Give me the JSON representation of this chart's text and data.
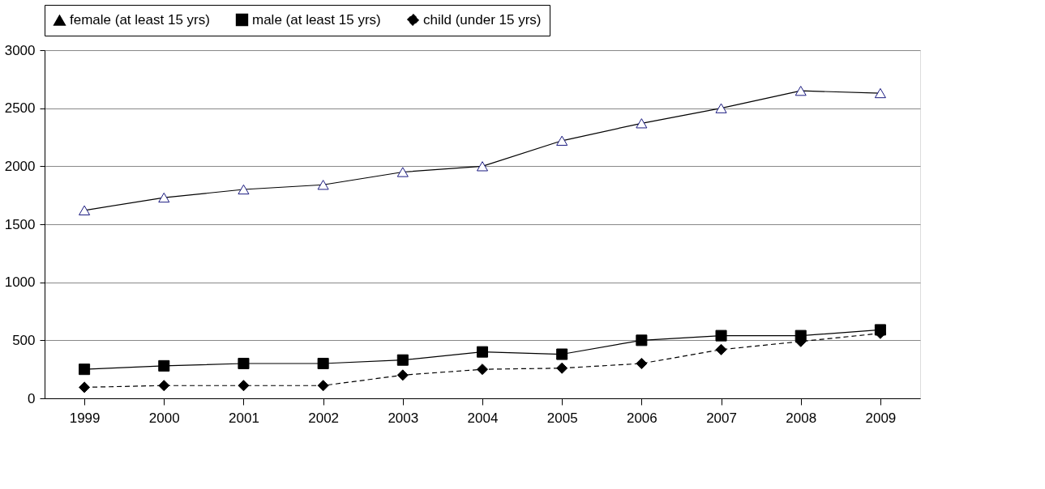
{
  "chart_data": {
    "type": "line",
    "categories": [
      "1999",
      "2000",
      "2001",
      "2002",
      "2003",
      "2004",
      "2005",
      "2006",
      "2007",
      "2008",
      "2009"
    ],
    "series": [
      {
        "name": "female (at least 15 yrs)",
        "color": "#000000",
        "marker": "triangle",
        "line_style": "solid",
        "values": [
          1620,
          1730,
          1800,
          1840,
          1950,
          2000,
          2220,
          2370,
          2500,
          2650,
          2630
        ]
      },
      {
        "name": "male (at least 15 yrs)",
        "color": "#000000",
        "marker": "square",
        "line_style": "solid",
        "values": [
          250,
          280,
          300,
          300,
          330,
          400,
          380,
          500,
          540,
          540,
          590
        ]
      },
      {
        "name": "child (under 15 yrs)",
        "color": "#000000",
        "marker": "diamond",
        "line_style": "dashed",
        "values": [
          95,
          110,
          110,
          110,
          200,
          250,
          260,
          300,
          420,
          490,
          560
        ]
      }
    ],
    "ylim": [
      0,
      3000
    ],
    "yticks": [
      0,
      500,
      1000,
      1500,
      2000,
      2500,
      3000
    ],
    "grid": "y",
    "legend": "top"
  }
}
